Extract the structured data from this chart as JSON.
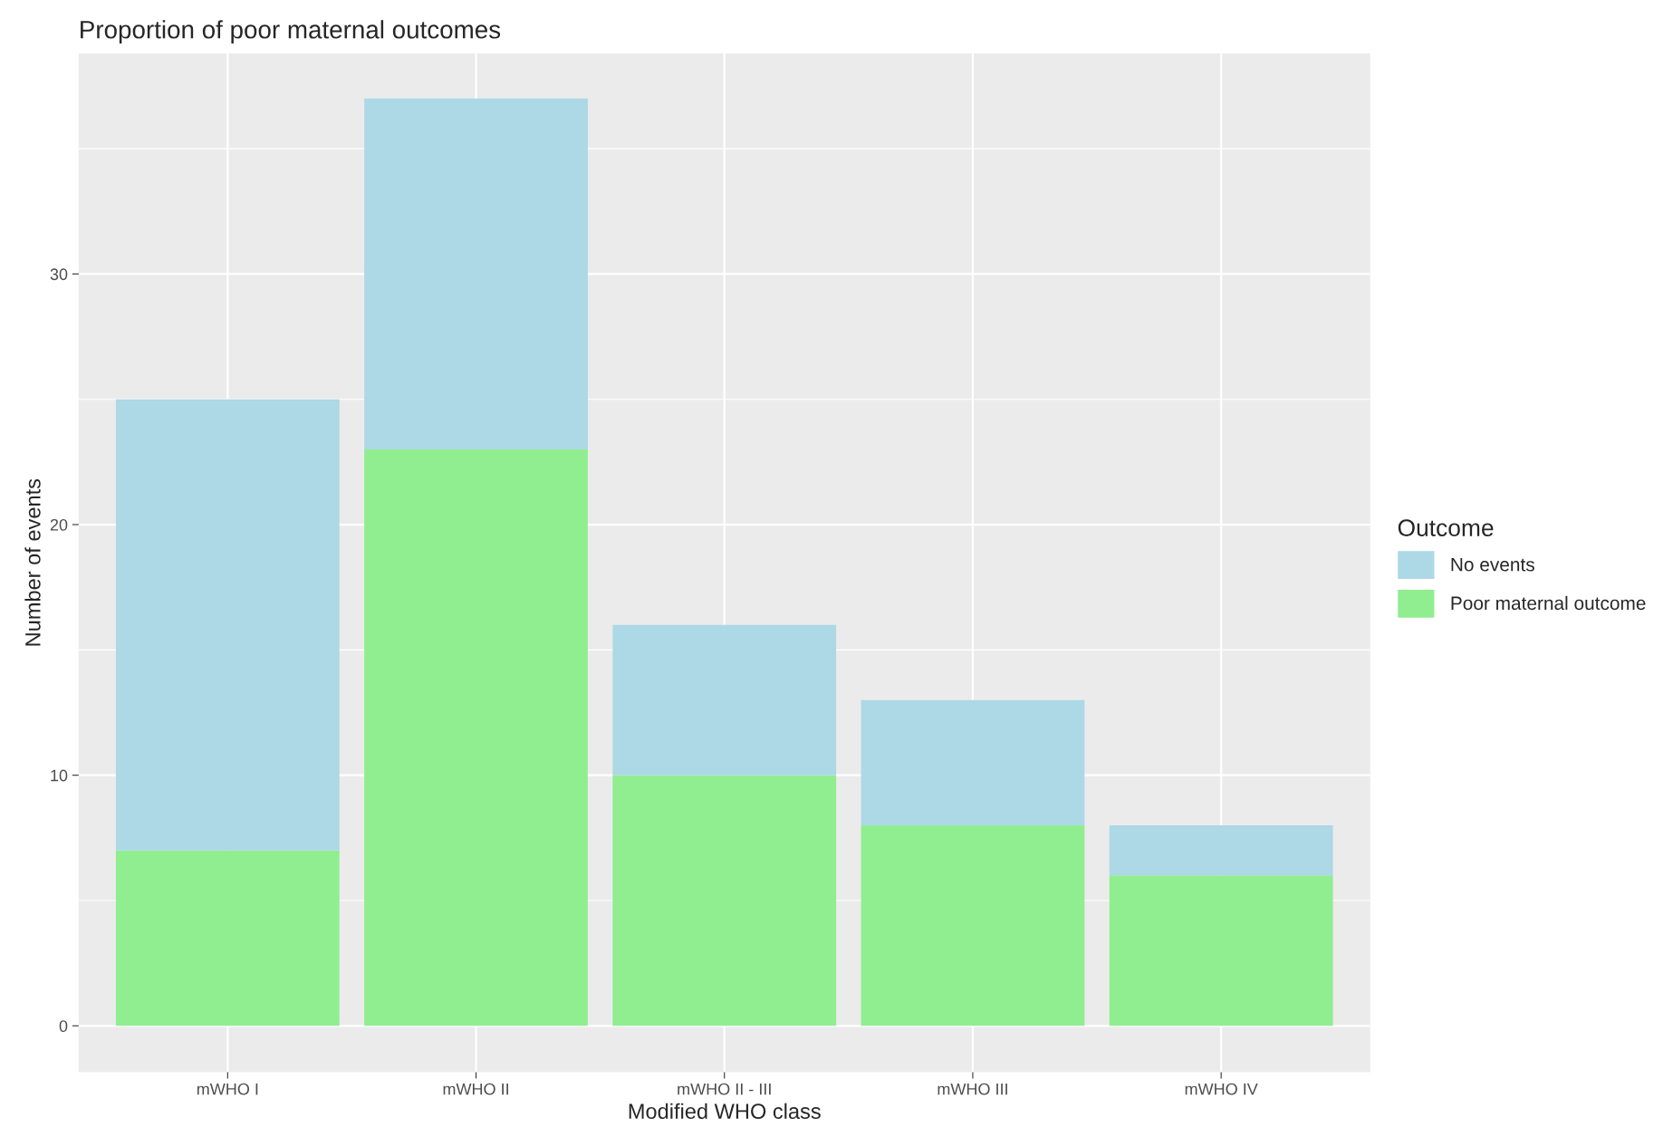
{
  "chart_data": {
    "type": "bar",
    "title": "Proportion of poor maternal outcomes",
    "xlabel": "Modified WHO class",
    "ylabel": "Number of events",
    "legend_title": "Outcome",
    "categories": [
      "mWHO I",
      "mWHO II",
      "mWHO II - III",
      "mWHO III",
      "mWHO IV"
    ],
    "series": [
      {
        "name": "Poor maternal outcome",
        "color": "#90ee90",
        "values": [
          7,
          23,
          10,
          8,
          6
        ]
      },
      {
        "name": "No events",
        "color": "#add8e6",
        "values": [
          18,
          14,
          6,
          5,
          2
        ]
      }
    ],
    "stacked": true,
    "ylim": [
      -1.85,
      38.8
    ],
    "yticks": [
      0,
      10,
      20,
      30
    ],
    "grid": true,
    "legend": "right"
  }
}
